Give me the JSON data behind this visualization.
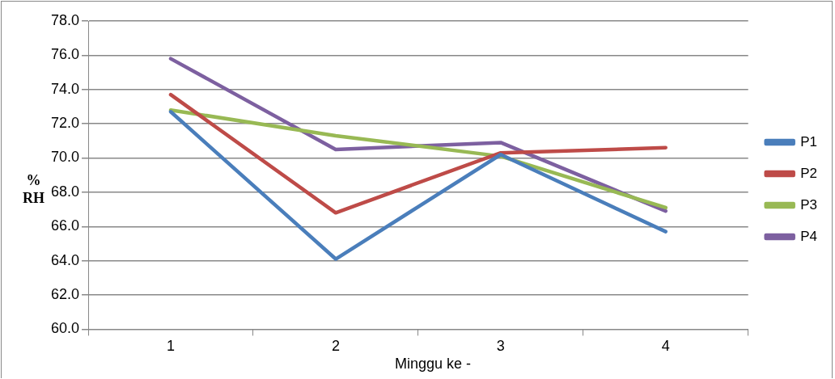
{
  "chart_data": {
    "type": "line",
    "xlabel": "Minggu ke -",
    "ylabel": "%\nRH",
    "categories": [
      "1",
      "2",
      "3",
      "4"
    ],
    "series": [
      {
        "name": "P1",
        "color": "#4a7ebb",
        "values": [
          72.7,
          64.1,
          70.2,
          65.7
        ]
      },
      {
        "name": "P2",
        "color": "#be4b48",
        "values": [
          73.7,
          66.8,
          70.3,
          70.6
        ]
      },
      {
        "name": "P3",
        "color": "#98b954",
        "values": [
          72.8,
          71.3,
          70.1,
          67.1
        ]
      },
      {
        "name": "P4",
        "color": "#7d60a0",
        "values": [
          75.8,
          70.5,
          70.9,
          66.9
        ]
      }
    ],
    "ylim": [
      60,
      78
    ],
    "yticks": [
      {
        "value": 60,
        "label": "60.0"
      },
      {
        "value": 62,
        "label": "62.0"
      },
      {
        "value": 64,
        "label": "64.0"
      },
      {
        "value": 66,
        "label": "66.0"
      },
      {
        "value": 68,
        "label": "68.0"
      },
      {
        "value": 70,
        "label": "70.0"
      },
      {
        "value": 72,
        "label": "72.0"
      },
      {
        "value": 74,
        "label": "74.0"
      },
      {
        "value": 76,
        "label": "76.0"
      },
      {
        "value": 78,
        "label": "78.0"
      }
    ],
    "grid": "y",
    "legend": "right",
    "marker": "none",
    "line_style": "solid"
  }
}
